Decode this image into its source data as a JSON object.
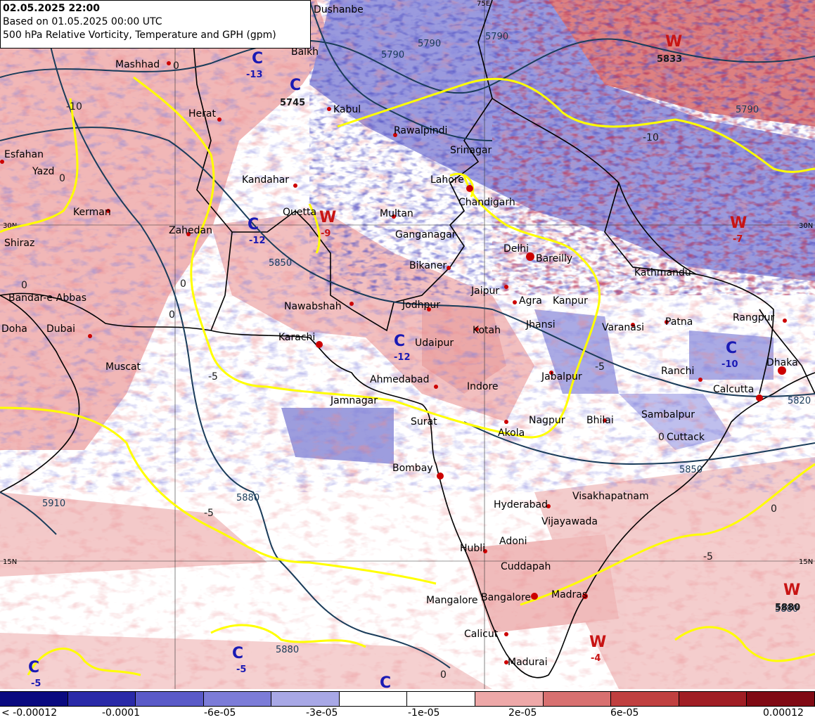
{
  "header": {
    "valid_time": "02.05.2025 22:00",
    "based_on": "Based on 01.05.2025 00:00 UTC",
    "product": "500 hPa Relative Vorticity, Temperature and GPH (gpm)"
  },
  "colors": {
    "strong_neg": "#1a1a8c",
    "neg": "#5a5ac8",
    "weak_neg": "#a8a8e6",
    "neutral": "#ffffff",
    "weak_pos": "#eea8a8",
    "pos": "#d25050",
    "strong_pos": "#8c0a14",
    "gph_contour": "#1a3c5a",
    "temp_isotherm": "#ffff00",
    "border": "#000000",
    "city_dot": "#cc0000",
    "cyclone": "#1a1ab4",
    "warm": "#c81414"
  },
  "legend": {
    "swatches": [
      "#0a0a80",
      "#2a2aa8",
      "#5a5ac8",
      "#7c7cd8",
      "#a8a8e6",
      "#ffffff",
      "#ffffff",
      "#eea8a8",
      "#d87070",
      "#c04040",
      "#a01e24",
      "#800a14"
    ],
    "labels": [
      "< -0.00012",
      "-0.0001",
      "-6e-05",
      "-3e-05",
      "-1e-05",
      "2e-05",
      "6e-05",
      "0.00012"
    ]
  },
  "gridlines": {
    "lat_30": "30N",
    "lat_15": "15N",
    "lon_75": "75E"
  },
  "cities": [
    {
      "name": "Dushanbe"
    },
    {
      "name": "Balkh"
    },
    {
      "name": "Mashhad"
    },
    {
      "name": "Herat"
    },
    {
      "name": "Kabul"
    },
    {
      "name": "Rawalpindi"
    },
    {
      "name": "Srinagar"
    },
    {
      "name": "Esfahan"
    },
    {
      "name": "Yazd"
    },
    {
      "name": "Kandahar"
    },
    {
      "name": "Lahore"
    },
    {
      "name": "Kerman"
    },
    {
      "name": "Quetta"
    },
    {
      "name": "Multan"
    },
    {
      "name": "Chandigarh"
    },
    {
      "name": "Zahedan"
    },
    {
      "name": "Shiraz"
    },
    {
      "name": "Ganganagar"
    },
    {
      "name": "Delhi"
    },
    {
      "name": "Bareilly"
    },
    {
      "name": "Bikaner"
    },
    {
      "name": "Kathmandu"
    },
    {
      "name": "Bandar-e-Abbas"
    },
    {
      "name": "Jaipur"
    },
    {
      "name": "Agra"
    },
    {
      "name": "Kanpur"
    },
    {
      "name": "Nawabshah"
    },
    {
      "name": "Jodhpur"
    },
    {
      "name": "Patna"
    },
    {
      "name": "Rangpur"
    },
    {
      "name": "Doha"
    },
    {
      "name": "Dubai"
    },
    {
      "name": "Jhansi"
    },
    {
      "name": "Varanasi"
    },
    {
      "name": "Kotah"
    },
    {
      "name": "Karachi"
    },
    {
      "name": "Udaipur"
    },
    {
      "name": "Dhaka"
    },
    {
      "name": "Muscat"
    },
    {
      "name": "Ranchi"
    },
    {
      "name": "Ahmedabad"
    },
    {
      "name": "Jabalpur"
    },
    {
      "name": "Indore"
    },
    {
      "name": "Calcutta"
    },
    {
      "name": "Jamnagar"
    },
    {
      "name": "Sambalpur"
    },
    {
      "name": "Surat"
    },
    {
      "name": "Nagpur"
    },
    {
      "name": "Bhilai"
    },
    {
      "name": "Akola"
    },
    {
      "name": "Cuttack"
    },
    {
      "name": "Bombay"
    },
    {
      "name": "Hyderabad"
    },
    {
      "name": "Visakhapatnam"
    },
    {
      "name": "Vijayawada"
    },
    {
      "name": "Adoni"
    },
    {
      "name": "Hubli"
    },
    {
      "name": "Cuddapah"
    },
    {
      "name": "Madras"
    },
    {
      "name": "Mangalore"
    },
    {
      "name": "Bangalore"
    },
    {
      "name": "Calicut"
    },
    {
      "name": "Madurai"
    }
  ],
  "pressure_systems": [
    {
      "type": "C",
      "value": "-13"
    },
    {
      "type": "C",
      "value": "5745"
    },
    {
      "type": "C",
      "value": "-12"
    },
    {
      "type": "C",
      "value": "-12"
    },
    {
      "type": "C",
      "value": "-10"
    },
    {
      "type": "C",
      "value": "-5"
    },
    {
      "type": "C",
      "value": "-5"
    },
    {
      "type": "C",
      "value": ""
    },
    {
      "type": "W",
      "value": "5833"
    },
    {
      "type": "W",
      "value": "-9"
    },
    {
      "type": "W",
      "value": "-7"
    },
    {
      "type": "W",
      "value": "5880"
    },
    {
      "type": "W",
      "value": "-4"
    }
  ],
  "contour_labels": [
    "5790",
    "5790",
    "5790",
    "5790",
    "5850",
    "5880",
    "5880",
    "5910",
    "5820",
    "5850",
    "5880"
  ],
  "isotherm_labels": [
    "-10",
    "-10",
    "0",
    "0",
    "0",
    "0",
    "0",
    "-5",
    "-5",
    "0",
    "-5",
    "0",
    "-5",
    "0"
  ]
}
